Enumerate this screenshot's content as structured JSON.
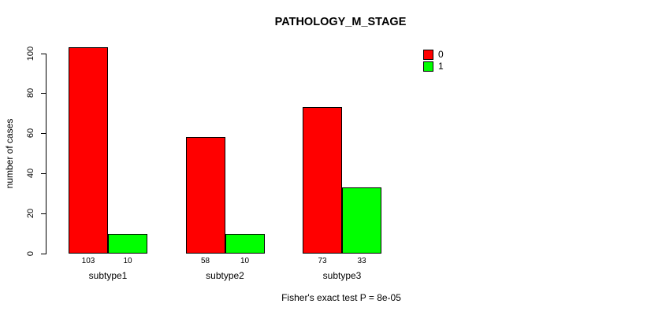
{
  "title": "PATHOLOGY_M_STAGE",
  "footer": "Fisher's exact test P = 8e-05",
  "chart_data": {
    "type": "bar",
    "title": "PATHOLOGY_M_STAGE",
    "categories": [
      "subtype1",
      "subtype2",
      "subtype3"
    ],
    "series": [
      {
        "name": "0",
        "color": "#ff0000",
        "values": [
          103,
          58,
          73
        ]
      },
      {
        "name": "1",
        "color": "#00ff00",
        "values": [
          10,
          10,
          33
        ]
      }
    ],
    "xlabel": "",
    "ylabel": "number of cases",
    "ylim": [
      0,
      100
    ],
    "yticks": [
      0,
      20,
      40,
      60,
      80,
      100
    ],
    "grid": false,
    "legend_position": "top-right",
    "bar_value_labels": [
      [
        "103",
        "58",
        "73"
      ],
      [
        "10",
        "10",
        "33"
      ]
    ],
    "annotation": "Fisher's exact test P = 8e-05"
  }
}
